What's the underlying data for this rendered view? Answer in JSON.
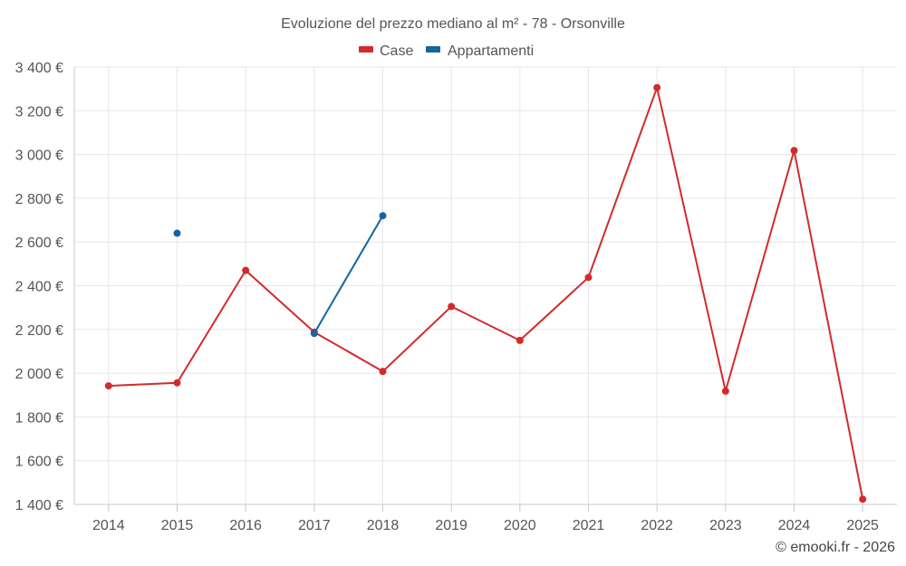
{
  "chart_data": {
    "type": "line",
    "title": "Evoluzione del prezzo mediano al m² - 78 - Orsonville",
    "xlabel": "",
    "ylabel": "",
    "categories": [
      "2014",
      "2015",
      "2016",
      "2017",
      "2018",
      "2019",
      "2020",
      "2021",
      "2022",
      "2023",
      "2024",
      "2025"
    ],
    "ylim": [
      1400,
      3400
    ],
    "yticks": [
      1400,
      1600,
      1800,
      2000,
      2200,
      2400,
      2600,
      2800,
      3000,
      3200,
      3400
    ],
    "ytick_labels": [
      "1 400 €",
      "1 600 €",
      "1 800 €",
      "2 000 €",
      "2 200 €",
      "2 400 €",
      "2 600 €",
      "2 800 €",
      "3 000 €",
      "3 200 €",
      "3 400 €"
    ],
    "grid": true,
    "legend_position": "top-center",
    "series": [
      {
        "name": "Case",
        "color": "#d42a2a",
        "values": [
          1942,
          1956,
          2470,
          2188,
          2008,
          2305,
          2150,
          2438,
          3306,
          1918,
          3018,
          1424
        ]
      },
      {
        "name": "Appartamenti",
        "color": "#1565a0",
        "values": [
          null,
          2640,
          null,
          2182,
          2720,
          null,
          null,
          null,
          null,
          null,
          null,
          null
        ]
      }
    ]
  },
  "credit": "© emooki.fr - 2026"
}
